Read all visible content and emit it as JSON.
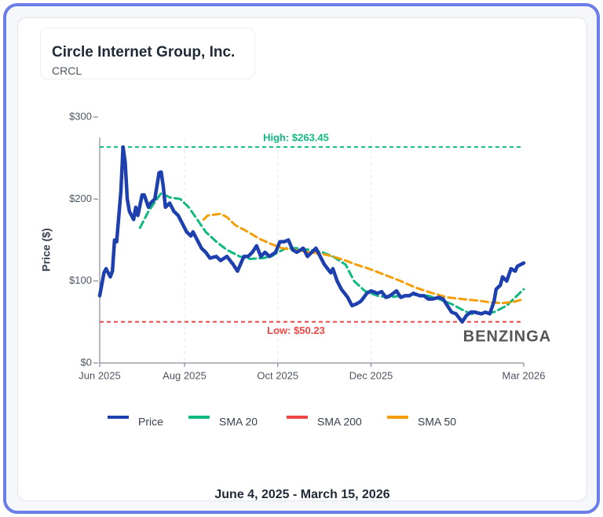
{
  "title": "Circle Internet Group, Inc.",
  "subtitle": "CRCL",
  "footer": "June 4, 2025 - March 15, 2026",
  "watermark": "BENZINGA",
  "chart_data": {
    "type": "line",
    "ylabel": "Price ($)",
    "ylim": [
      0,
      300
    ],
    "xlim": [
      0,
      200
    ],
    "yticks": [
      {
        "value": 0,
        "label": "$0"
      },
      {
        "value": 100,
        "label": "$100"
      },
      {
        "value": 200,
        "label": "$200"
      },
      {
        "value": 300,
        "label": "$300"
      }
    ],
    "xticks": [
      {
        "value": 0,
        "label": "Jun 2025"
      },
      {
        "value": 40,
        "label": "Aug 2025"
      },
      {
        "value": 84,
        "label": "Oct 2025"
      },
      {
        "value": 128,
        "label": "Dec 2025"
      },
      {
        "value": 200,
        "label": "Mar 2026"
      }
    ],
    "grid": true,
    "annotations": [
      {
        "label": "High: $263.45",
        "value": 263.45,
        "color": "#10b981"
      },
      {
        "label": "Low: $50.23",
        "value": 50.23,
        "color": "#ef4444"
      }
    ],
    "series": [
      {
        "name": "Price",
        "color": "#1e40af",
        "dash": false,
        "x": [
          0,
          2,
          3,
          5,
          6,
          7,
          8,
          10,
          11,
          12,
          13,
          14,
          16,
          17,
          18,
          20,
          21,
          23,
          24,
          26,
          28,
          29,
          30,
          31,
          33,
          35,
          37,
          39,
          41,
          43,
          44,
          46,
          48,
          50,
          52,
          55,
          57,
          60,
          63,
          65,
          68,
          70,
          72,
          74,
          76,
          78,
          80,
          83,
          85,
          87,
          89,
          91,
          93,
          96,
          98,
          100,
          102,
          104,
          106,
          109,
          110,
          112,
          114,
          117,
          119,
          121,
          123,
          124,
          126,
          128,
          131,
          133,
          135,
          137,
          140,
          142,
          144,
          146,
          148,
          151,
          153,
          155,
          157,
          160,
          162,
          164,
          166,
          168,
          171,
          173,
          175,
          177,
          180,
          182,
          184,
          186,
          187,
          189,
          190,
          192,
          194,
          196,
          197,
          200
        ],
        "values": [
          82,
          110,
          115,
          105,
          112,
          150,
          148,
          210,
          263.45,
          245,
          200,
          185,
          175,
          190,
          180,
          205,
          205,
          190,
          195,
          200,
          232,
          233,
          215,
          190,
          195,
          185,
          180,
          170,
          160,
          155,
          160,
          150,
          140,
          135,
          128,
          130,
          125,
          130,
          120,
          112,
          130,
          130,
          135,
          143,
          130,
          135,
          130,
          135,
          148,
          148,
          150,
          138,
          135,
          140,
          130,
          135,
          140,
          130,
          120,
          110,
          115,
          100,
          90,
          80,
          70,
          72,
          75,
          78,
          85,
          88,
          85,
          87,
          80,
          82,
          88,
          80,
          82,
          82,
          85,
          82,
          82,
          78,
          78,
          80,
          78,
          70,
          62,
          60,
          50.23,
          58,
          62,
          62,
          60,
          62,
          60,
          75,
          90,
          95,
          105,
          100,
          115,
          112,
          118,
          122
        ]
      },
      {
        "name": "SMA 20",
        "color": "#10b981",
        "dash": true,
        "x": [
          19,
          23,
          27,
          29,
          33,
          38,
          42,
          46,
          50,
          55,
          60,
          66,
          71,
          77,
          81,
          84,
          88,
          94,
          99,
          105,
          110,
          116,
          120,
          125,
          131,
          136,
          142,
          149,
          155,
          160,
          166,
          171,
          175,
          181,
          186,
          192,
          196,
          200
        ],
        "values": [
          165,
          185,
          200,
          207,
          202,
          200,
          190,
          175,
          160,
          148,
          138,
          130,
          127,
          128,
          130,
          135,
          140,
          140,
          138,
          135,
          130,
          120,
          100,
          88,
          82,
          80,
          82,
          83,
          82,
          78,
          72,
          65,
          60,
          61,
          62,
          70,
          80,
          90
        ]
      },
      {
        "name": "SMA 200",
        "color": "#ef4444",
        "dash": true,
        "x": [],
        "values": []
      },
      {
        "name": "SMA 50",
        "color": "#f59e0b",
        "dash": true,
        "x": [
          49,
          51,
          57,
          60,
          64,
          70,
          75,
          81,
          86,
          92,
          97,
          105,
          110,
          116,
          121,
          127,
          134,
          142,
          149,
          156,
          164,
          171,
          179,
          184,
          190,
          196,
          200
        ],
        "values": [
          175,
          180,
          182,
          178,
          168,
          160,
          152,
          145,
          140,
          138,
          136,
          133,
          130,
          125,
          120,
          115,
          108,
          100,
          92,
          86,
          80,
          78,
          76,
          74,
          73,
          75,
          78
        ]
      }
    ]
  }
}
